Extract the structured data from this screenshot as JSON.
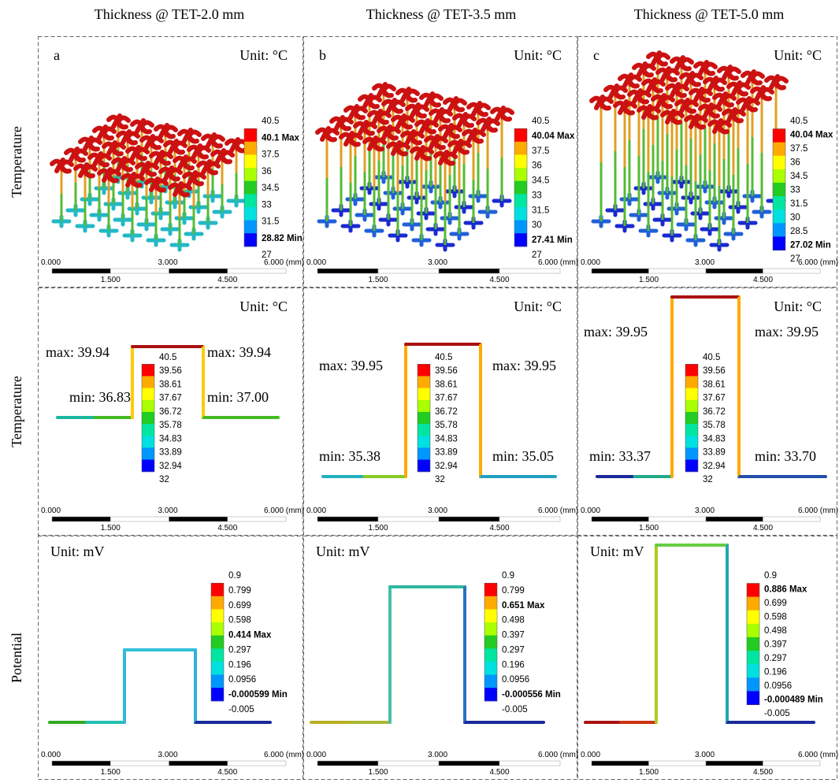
{
  "columns": [
    "Thickness @ TET-2.0 mm",
    "Thickness @ TET-3.5 mm",
    "Thickness @ TET-5.0 mm"
  ],
  "row_labels": [
    "Temperature",
    "Temperature",
    "Potential"
  ],
  "panels": [
    {
      "letter": "a",
      "unit": "Unit: °C",
      "legend": [
        "40.5",
        "40.1 Max",
        "37.5",
        "36",
        "34.5",
        "33",
        "31.5",
        "28.82 Min",
        "27"
      ]
    },
    {
      "letter": "b",
      "unit": "Unit: °C",
      "legend": [
        "40.5",
        "40.04 Max",
        "37.5",
        "36",
        "34.5",
        "33",
        "31.5",
        "30",
        "27.41 Min",
        "27"
      ]
    },
    {
      "letter": "c",
      "unit": "Unit: °C",
      "legend": [
        "40.5",
        "40.04 Max",
        "37.5",
        "36",
        "34.5",
        "33",
        "31.5",
        "30",
        "28.5",
        "27.02 Min",
        "27"
      ]
    },
    {
      "unit": "Unit: °C",
      "legend": [
        "40.5",
        "39.56",
        "38.61",
        "37.67",
        "36.72",
        "35.78",
        "34.83",
        "33.89",
        "32.94",
        "32"
      ],
      "annotations": [
        "max: 39.94",
        "max: 39.94",
        "min: 36.83",
        "min: 37.00"
      ]
    },
    {
      "unit": "Unit: °C",
      "legend": [
        "40.5",
        "39.56",
        "38.61",
        "37.67",
        "36.72",
        "35.78",
        "34.83",
        "33.89",
        "32.94",
        "32"
      ],
      "annotations": [
        "max: 39.95",
        "max: 39.95",
        "min: 35.38",
        "min: 35.05"
      ]
    },
    {
      "unit": "Unit: °C",
      "legend": [
        "40.5",
        "39.56",
        "38.61",
        "37.67",
        "36.72",
        "35.78",
        "34.83",
        "33.89",
        "32.94",
        "32"
      ],
      "annotations": [
        "max: 39.95",
        "max: 39.95",
        "min: 33.37",
        "min: 33.70"
      ]
    },
    {
      "unit": "Unit: mV",
      "legend": [
        "0.9",
        "0.799",
        "0.699",
        "0.598",
        "0.414 Max",
        "0.297",
        "0.196",
        "0.0956",
        "-0.000599 Min",
        "-0.005"
      ]
    },
    {
      "unit": "Unit: mV",
      "legend": [
        "0.9",
        "0.799",
        "0.651 Max",
        "0.498",
        "0.397",
        "0.297",
        "0.196",
        "0.0956",
        "-0.000556 Min",
        "-0.005"
      ]
    },
    {
      "unit": "Unit: mV",
      "legend": [
        "0.9",
        "0.886 Max",
        "0.699",
        "0.598",
        "0.498",
        "0.397",
        "0.297",
        "0.196",
        "0.0956",
        "-0.000489 Min",
        "-0.005"
      ]
    }
  ],
  "scale_bar": {
    "top": [
      "0.000",
      "3.000",
      "6.000 (mm)"
    ],
    "bottom": [
      "1.500",
      "4.500"
    ]
  }
}
